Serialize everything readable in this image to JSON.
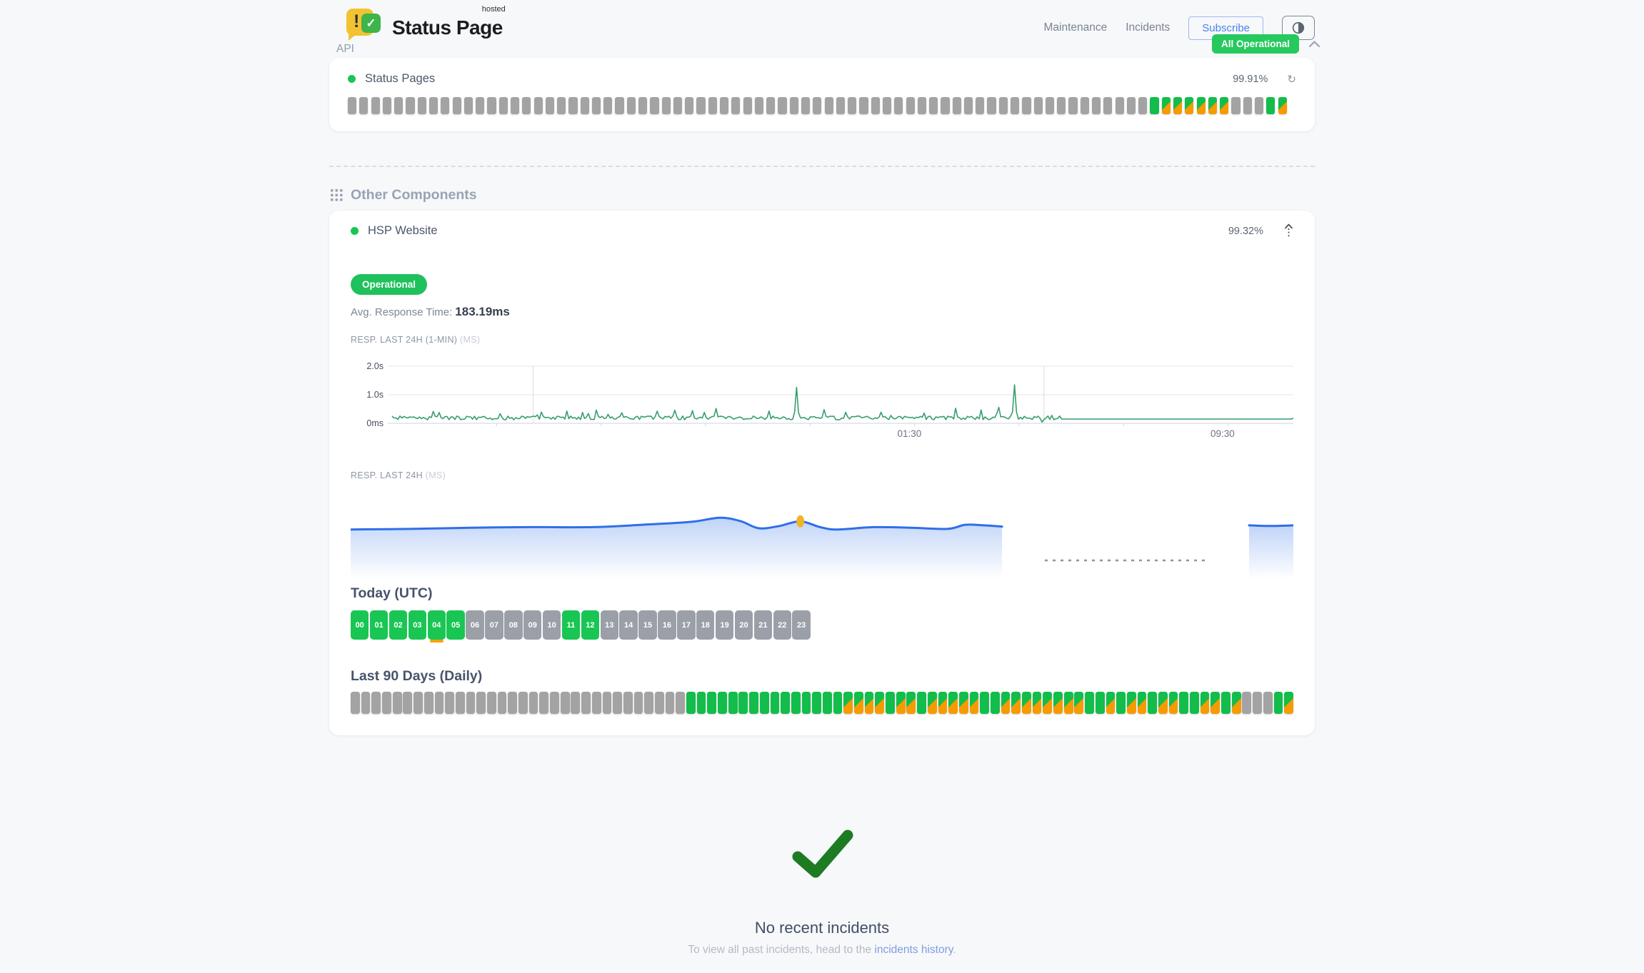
{
  "header": {
    "logo_text": "Status Page",
    "logo_superscript": "hosted",
    "nav": [
      {
        "label": "Maintenance"
      },
      {
        "label": "Incidents"
      }
    ],
    "subscribe_label": "Subscribe",
    "overall_status": "All Operational"
  },
  "api_section": {
    "title": "API",
    "component": {
      "name": "Status Pages",
      "uptime": "99.91%"
    },
    "bars_legend": {
      "u": "operational-green",
      "d": "degraded-green-orange",
      "n": "no-data-gray"
    },
    "bars": [
      [
        "n",
        69
      ],
      [
        "u",
        1
      ],
      [
        "d",
        6
      ],
      [
        "n",
        3
      ],
      [
        "u",
        1
      ],
      [
        "d",
        1
      ]
    ]
  },
  "other_components": {
    "title": "Other Components",
    "component": {
      "name": "HSP Website",
      "uptime": "99.32%",
      "status": "Operational",
      "avg_response_label": "Avg. Response Time:",
      "avg_response_value": "183.19ms"
    }
  },
  "chart_data": [
    {
      "id": "resp_1min",
      "type": "line",
      "title": "RESP. LAST 24H (1-MIN)",
      "unit": "(MS)",
      "color": "#379e6d",
      "ylim": [
        0,
        2000
      ],
      "ytick_labels": [
        "2.0s",
        "1.0s",
        "0ms"
      ],
      "xticks": [
        {
          "t": 0.55,
          "label": "01:30"
        },
        {
          "t": 0.883,
          "label": "09:30"
        }
      ],
      "vgrid": [
        0.15,
        0.693
      ],
      "baseline_ms": [
        125,
        255
      ],
      "flat": {
        "from": 0.711,
        "to": 0.957,
        "ms": 150
      },
      "minor_spikes": [
        [
          0.05,
          380
        ],
        [
          0.115,
          340
        ],
        [
          0.185,
          430
        ],
        [
          0.245,
          370
        ],
        [
          0.3,
          460
        ],
        [
          0.345,
          520
        ],
        [
          0.4,
          430
        ],
        [
          0.46,
          480
        ],
        [
          0.52,
          390
        ],
        [
          0.565,
          360
        ],
        [
          0.6,
          530
        ],
        [
          0.627,
          470
        ],
        [
          0.645,
          560
        ],
        [
          0.692,
          40
        ],
        [
          0.702,
          280
        ],
        [
          0.975,
          330
        ]
      ],
      "major_spikes": [
        [
          0.431,
          1260
        ],
        [
          0.661,
          1350
        ]
      ]
    },
    {
      "id": "resp_24h",
      "type": "area",
      "title": "RESP. LAST 24H",
      "unit": "(MS)",
      "color": "#2e6fe8",
      "marker": {
        "t": 0.477,
        "ms": 190,
        "color": "#f0b429"
      },
      "segment1": [
        [
          0,
          176
        ],
        [
          0.064,
          177
        ],
        [
          0.128,
          179
        ],
        [
          0.19,
          180
        ],
        [
          0.257,
          180
        ],
        [
          0.309,
          184
        ],
        [
          0.361,
          189
        ],
        [
          0.392,
          196
        ],
        [
          0.414,
          190
        ],
        [
          0.433,
          178
        ],
        [
          0.455,
          182
        ],
        [
          0.477,
          190
        ],
        [
          0.498,
          180
        ],
        [
          0.516,
          176
        ],
        [
          0.555,
          180
        ],
        [
          0.594,
          179
        ],
        [
          0.633,
          177
        ],
        [
          0.652,
          184
        ],
        [
          0.672,
          183
        ],
        [
          0.691,
          181
        ]
      ],
      "segment2": [
        [
          0.953,
          183
        ],
        [
          0.975,
          182
        ],
        [
          1,
          183
        ]
      ],
      "gap_dash": {
        "from": 0.736,
        "to": 0.907
      }
    }
  ],
  "today": {
    "title": "Today (UTC)",
    "hours": [
      {
        "label": "00",
        "status": "u"
      },
      {
        "label": "01",
        "status": "u"
      },
      {
        "label": "02",
        "status": "u"
      },
      {
        "label": "03",
        "status": "u"
      },
      {
        "label": "04",
        "status": "u",
        "strip": true
      },
      {
        "label": "05",
        "status": "u"
      },
      {
        "label": "06",
        "status": "n"
      },
      {
        "label": "07",
        "status": "n"
      },
      {
        "label": "08",
        "status": "n"
      },
      {
        "label": "09",
        "status": "n"
      },
      {
        "label": "10",
        "status": "n"
      },
      {
        "label": "11",
        "status": "u"
      },
      {
        "label": "12",
        "status": "u"
      },
      {
        "label": "13",
        "status": "n"
      },
      {
        "label": "14",
        "status": "n"
      },
      {
        "label": "15",
        "status": "n"
      },
      {
        "label": "16",
        "status": "n"
      },
      {
        "label": "17",
        "status": "n"
      },
      {
        "label": "18",
        "status": "n"
      },
      {
        "label": "19",
        "status": "n"
      },
      {
        "label": "20",
        "status": "n"
      },
      {
        "label": "21",
        "status": "n"
      },
      {
        "label": "22",
        "status": "n"
      },
      {
        "label": "23",
        "status": "n"
      }
    ]
  },
  "last_90_days": {
    "title": "Last 90 Days (Daily)",
    "days": [
      [
        "n",
        32
      ],
      [
        "u",
        15
      ],
      [
        "d",
        4
      ],
      [
        "u",
        1
      ],
      [
        "d",
        2
      ],
      [
        "u",
        1
      ],
      [
        "d",
        5
      ],
      [
        "u",
        2
      ],
      [
        "d",
        8
      ],
      [
        "u",
        2
      ],
      [
        "d",
        1
      ],
      [
        "u",
        1
      ],
      [
        "d",
        2
      ],
      [
        "u",
        1
      ],
      [
        "d",
        2
      ],
      [
        "u",
        2
      ],
      [
        "d",
        2
      ],
      [
        "u",
        1
      ],
      [
        "d",
        1
      ],
      [
        "n",
        3
      ],
      [
        "u",
        1
      ],
      [
        "d",
        1
      ]
    ]
  },
  "incidents": {
    "title": "No recent incidents",
    "subtitle_prefix": "To view all past incidents, head to the ",
    "link_text": "incidents history",
    "subtitle_suffix": "."
  }
}
